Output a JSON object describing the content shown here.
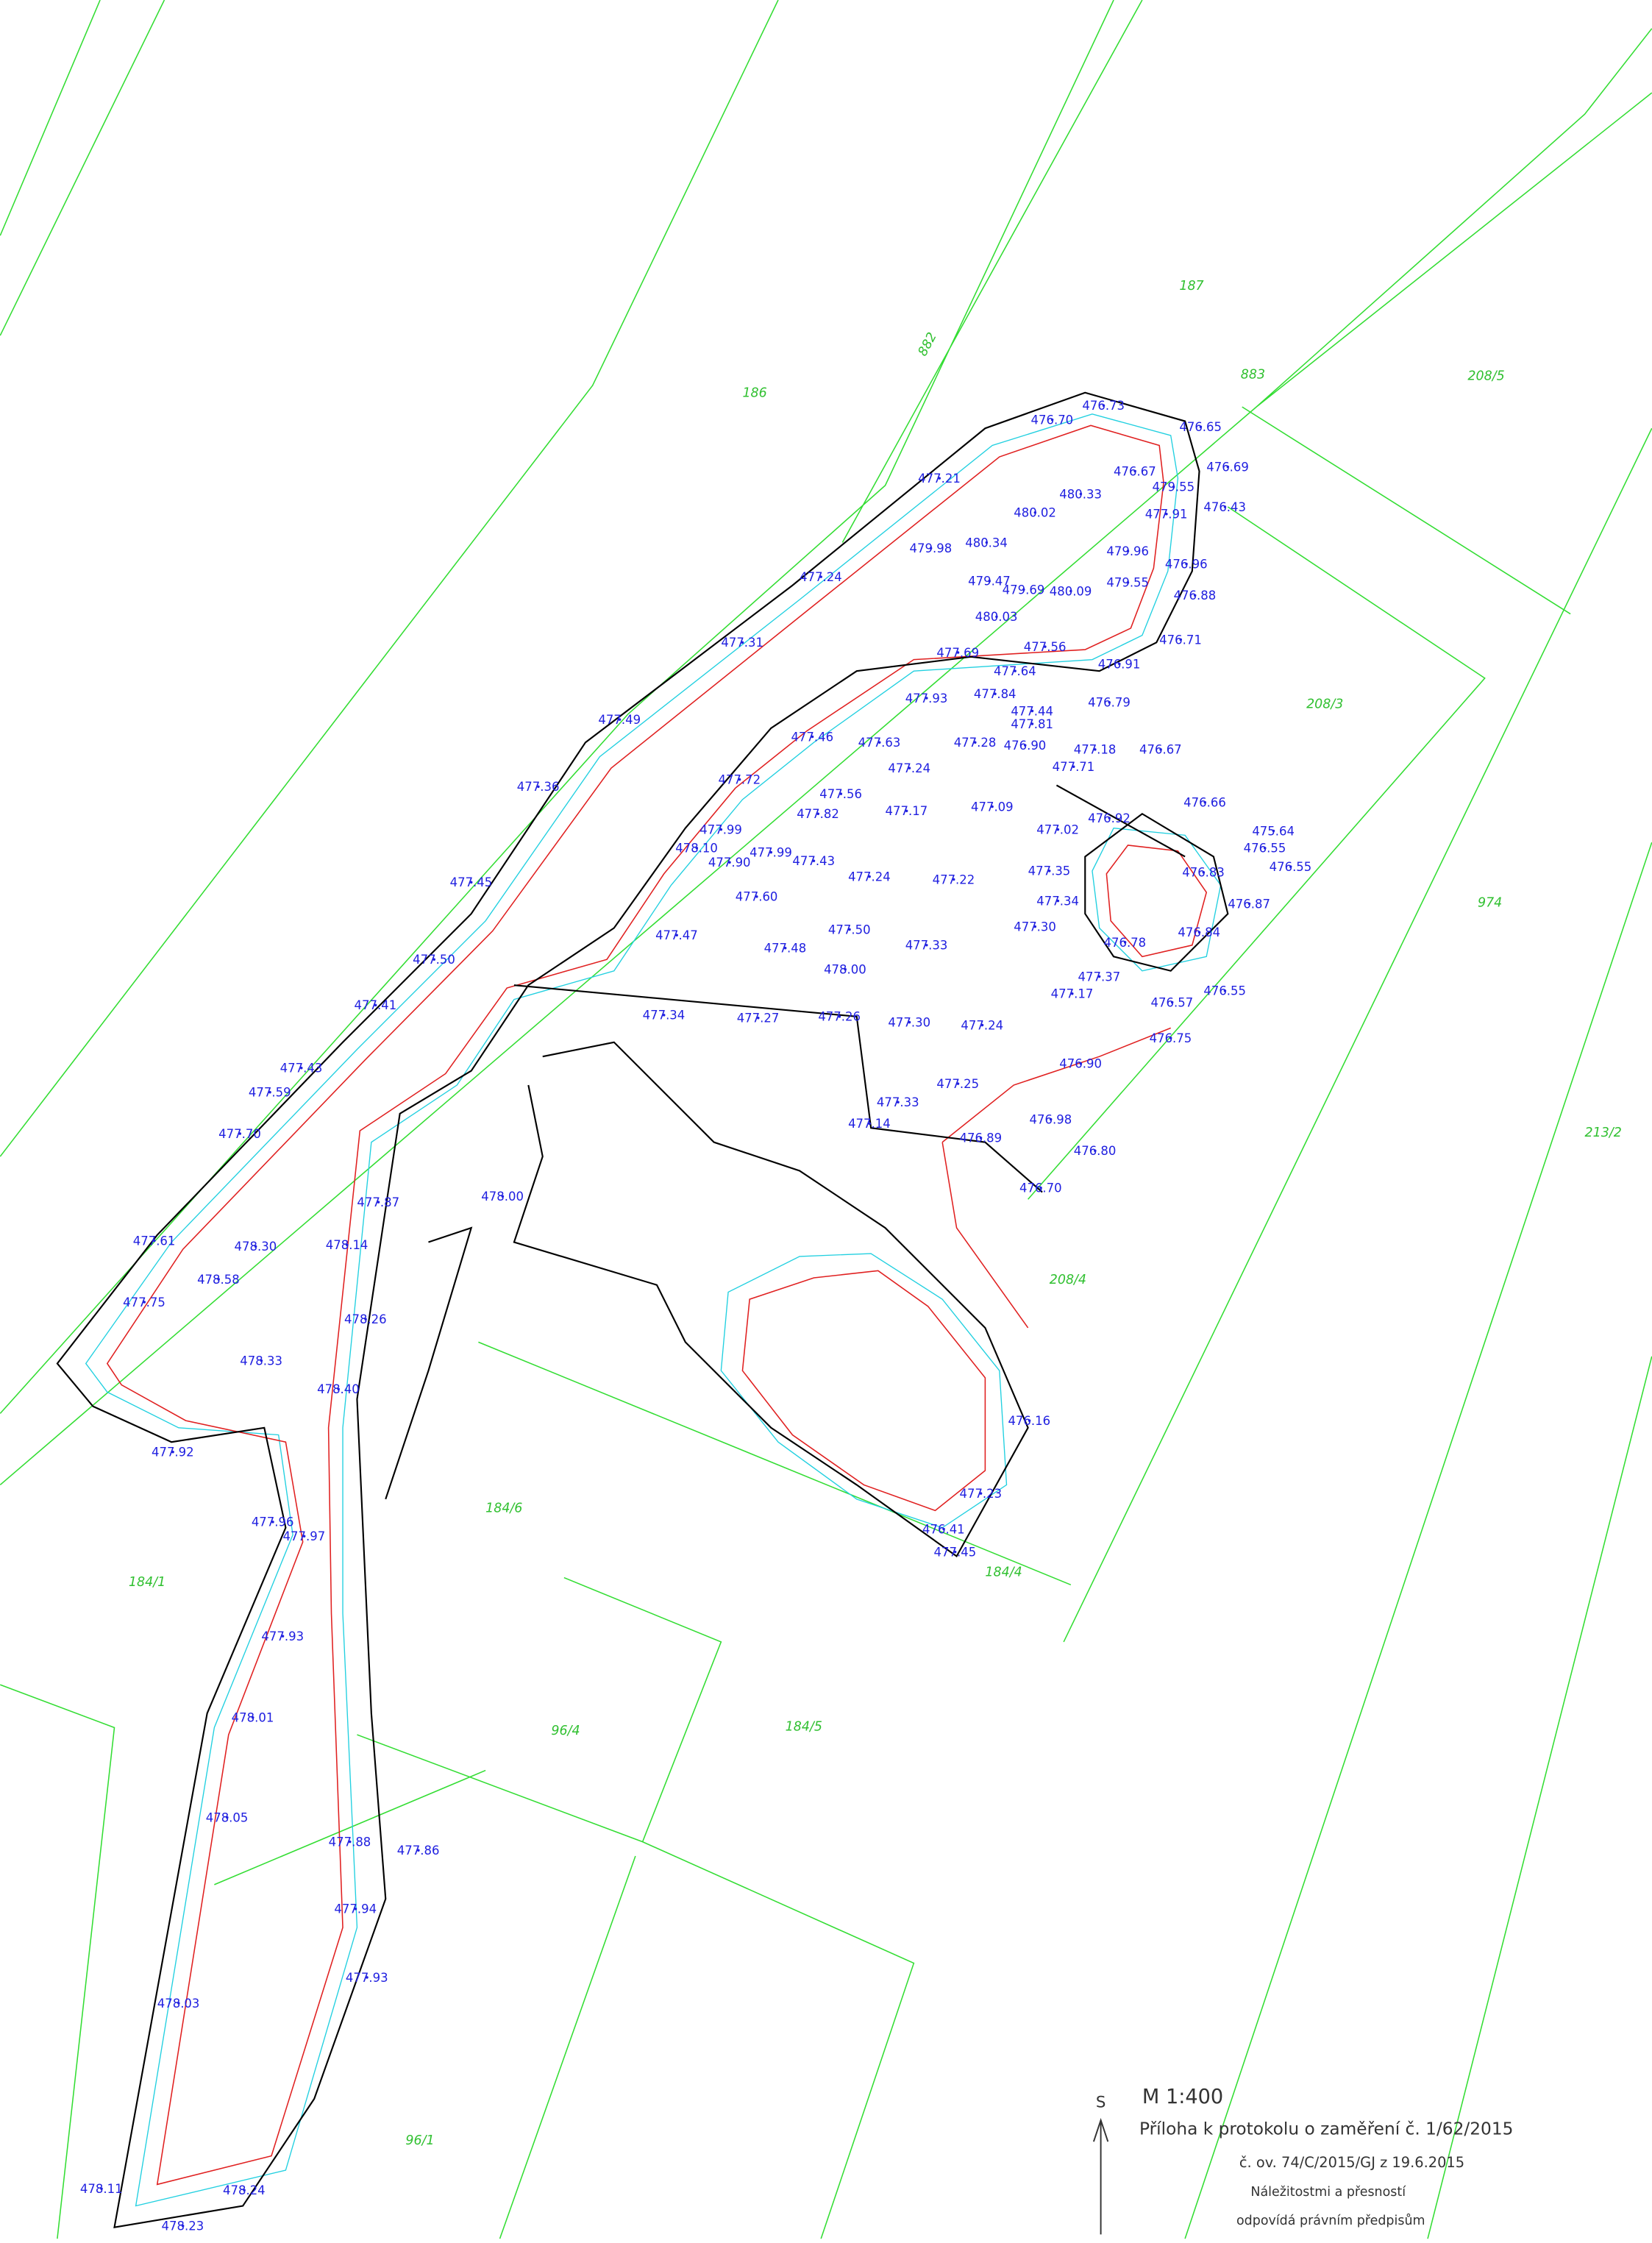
{
  "parcels": [
    "186",
    "882",
    "187",
    "883",
    "208/5",
    "208/3",
    "974",
    "213/2",
    "208/4",
    "184/6",
    "184/4",
    "184/1",
    "96/4",
    "184/5",
    "96/1"
  ],
  "elevations": [
    "476.73",
    "476.70",
    "476.65",
    "476.69",
    "476.67",
    "477.21",
    "480.33",
    "476.43",
    "479.55",
    "480.02",
    "477.91",
    "480.34",
    "479.98",
    "479.96",
    "476.96",
    "477.24",
    "479.47",
    "479.69",
    "480.09",
    "479.55",
    "476.88",
    "480.03",
    "477.31",
    "477.56",
    "476.71",
    "477.69",
    "477.64",
    "476.91",
    "477.84",
    "476.79",
    "477.93",
    "477.44",
    "477.81",
    "477.28",
    "476.90",
    "477.18",
    "477.49",
    "477.46",
    "477.63",
    "477.24",
    "477.71",
    "476.67",
    "477.36",
    "477.72",
    "477.56",
    "477.82",
    "477.17",
    "477.09",
    "477.02",
    "476.92",
    "476.66",
    "475.64",
    "476.55",
    "476.55",
    "477.99",
    "478.10",
    "477.90",
    "477.99",
    "477.43",
    "477.24",
    "477.22",
    "477.35",
    "476.83",
    "477.45",
    "477.60",
    "477.34",
    "476.87",
    "477.30",
    "476.84",
    "477.50",
    "477.33",
    "477.48",
    "477.50",
    "477.47",
    "476.78",
    "478.00",
    "477.37",
    "477.17",
    "476.55",
    "476.57",
    "477.41",
    "477.34",
    "477.27",
    "477.26",
    "477.30",
    "477.24",
    "476.75",
    "477.43",
    "476.90",
    "477.59",
    "477.70",
    "477.25",
    "477.33",
    "476.98",
    "477.14",
    "476.89",
    "476.80",
    "476.70",
    "477.87",
    "478.00",
    "477.61",
    "478.30",
    "478.14",
    "478.58",
    "477.75",
    "478.26",
    "478.33",
    "478.40",
    "477.92",
    "477.96",
    "477.97",
    "476.16",
    "477.45",
    "476.41",
    "477.23",
    "477.93",
    "478.01",
    "478.05",
    "477.88",
    "477.86",
    "477.93",
    "478.03",
    "477.94",
    "478.11",
    "478.23",
    "478.24"
  ],
  "legend": {
    "north": "S",
    "scale": "M 1:400",
    "line1": "Příloha k protokolu o zaměření č. 1/62/2015",
    "line2": "č. ov. 74/C/2015/GJ z 19.6.2015",
    "line3": "Náležitostmi a přesností",
    "line4": "odpovídá právním předpisům"
  }
}
